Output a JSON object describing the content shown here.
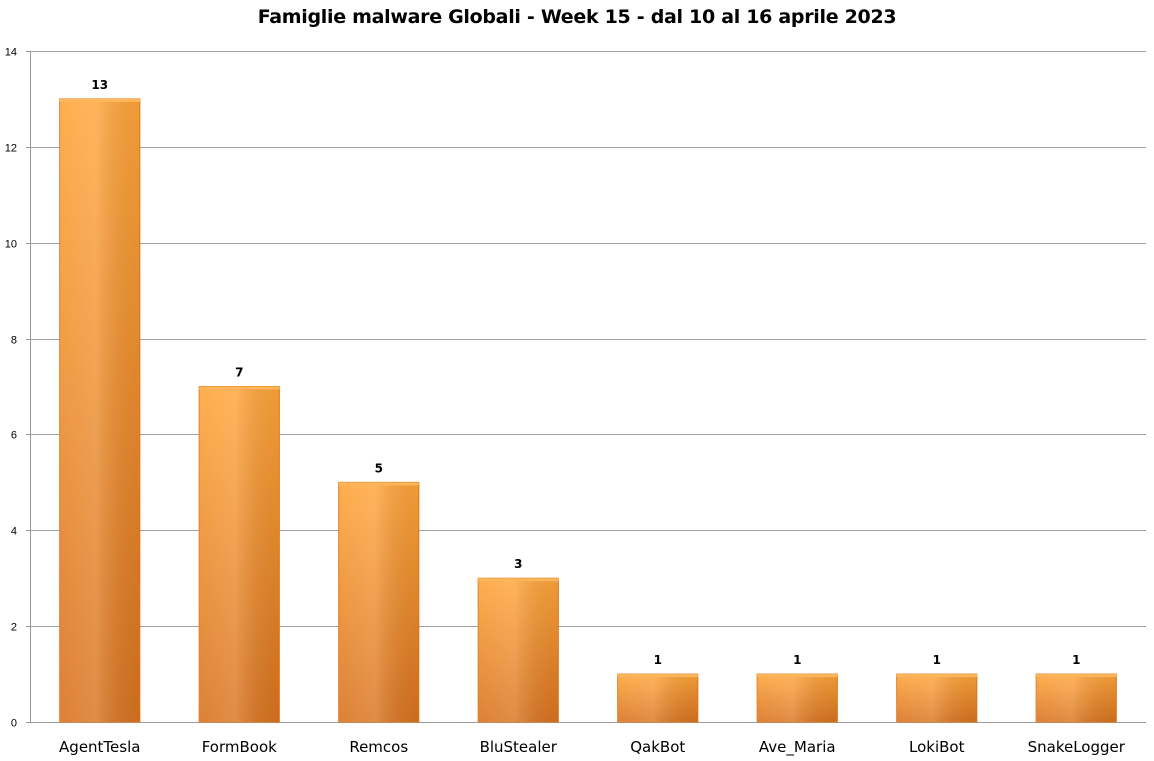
{
  "chart_data": {
    "type": "bar",
    "title": "Famiglie malware Globali - Week 15 - dal 10 al 16 aprile 2023",
    "categories": [
      "AgentTesla",
      "FormBook",
      "Remcos",
      "BluStealer",
      "QakBot",
      "Ave_Maria",
      "LokiBot",
      "SnakeLogger"
    ],
    "values": [
      13,
      7,
      5,
      3,
      1,
      1,
      1,
      1
    ],
    "ylim": [
      0,
      14
    ],
    "yticks": [
      0,
      2,
      4,
      6,
      8,
      10,
      12,
      14
    ],
    "xlabel": "",
    "ylabel": "",
    "grid": true,
    "legend": "none",
    "colors": {
      "bar_light": "#FFA53A",
      "bar_dark": "#D9731F",
      "bar_edge": "#E07A20",
      "grid": "#A0A0A0",
      "axis": "#9A9A9A"
    }
  }
}
